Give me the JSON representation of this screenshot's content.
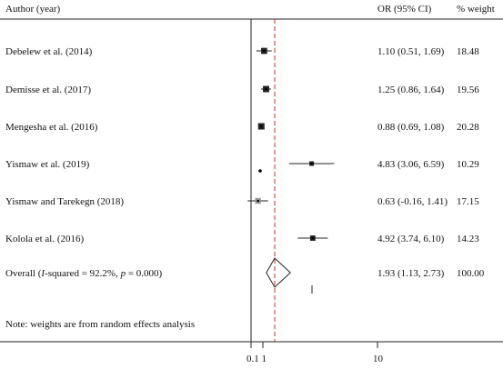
{
  "chart_data": {
    "type": "forest",
    "headers": {
      "study": "Author (year)",
      "effect": "OR (95% CI)",
      "weight": "% weight"
    },
    "studies": [
      {
        "label": "Debelew et al. (2014)",
        "or": 1.1,
        "lower": 0.51,
        "upper": 1.69,
        "ci_text": "1.10 (0.51, 1.69)",
        "weight_text": "18.48",
        "weight": 18.48
      },
      {
        "label": "Demisse et al. (2017)",
        "or": 1.25,
        "lower": 0.86,
        "upper": 1.64,
        "ci_text": "1.25 (0.86, 1.64)",
        "weight_text": "19.56",
        "weight": 19.56
      },
      {
        "label": "Mengesha et al. (2016)",
        "or": 0.88,
        "lower": 0.69,
        "upper": 1.08,
        "ci_text": "0.88 (0.69, 1.08)",
        "weight_text": "20.28",
        "weight": 20.28
      },
      {
        "label": "Yismaw et al. (2019)",
        "or": 4.83,
        "lower": 3.06,
        "upper": 6.59,
        "ci_text": "4.83 (3.06, 6.59)",
        "weight_text": "10.29",
        "weight": 10.29
      },
      {
        "label": "Yismaw and Tarekegn (2018)",
        "or": 0.63,
        "lower": -0.16,
        "upper": 1.41,
        "ci_text": "0.63 (-0.16, 1.41)",
        "weight_text": "17.15",
        "weight": 17.15
      },
      {
        "label": "Kolola et al. (2016)",
        "or": 4.92,
        "lower": 3.74,
        "upper": 6.1,
        "ci_text": "4.92 (3.74, 6.10)",
        "weight_text": "14.23",
        "weight": 14.23
      }
    ],
    "overall": {
      "label_prefix": "Overall (",
      "label_i": "I",
      "label_mid": "-squared = 92.2%, ",
      "label_p": "p",
      "label_suffix": " = 0.000)",
      "or": 1.93,
      "lower": 1.13,
      "upper": 2.73,
      "ci_text": "1.93 (1.13, 2.73)",
      "weight_text": "100.00"
    },
    "note": "Note: weights are from random effects analysis",
    "x_ticks": [
      {
        "label": "0.1",
        "value": 0.1
      },
      {
        "label": "1",
        "value": 1
      },
      {
        "label": "10",
        "value": 10
      }
    ],
    "null_line": 1,
    "colors": {
      "text": "#111111",
      "marker": "#222222",
      "outlier_marker": "#999999",
      "pooled_line": "#c0392b",
      "line": "#222222"
    }
  }
}
